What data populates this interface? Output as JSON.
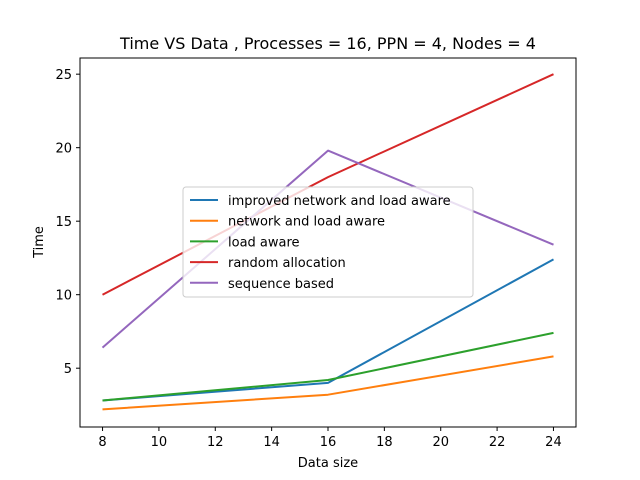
{
  "chart_data": {
    "type": "line",
    "title": "Time VS Data , Processes = 16, PPN = 4, Nodes = 4",
    "xlabel": "Data size",
    "ylabel": "Time",
    "xlim": [
      7.2,
      24.8
    ],
    "ylim": [
      1.0,
      26.1
    ],
    "xticks": [
      8,
      10,
      12,
      14,
      16,
      18,
      20,
      22,
      24
    ],
    "yticks": [
      5,
      10,
      15,
      20,
      25
    ],
    "grid": false,
    "legend_position": "center",
    "x": [
      8,
      16,
      24
    ],
    "series": [
      {
        "name": "improved network and load aware",
        "color": "#1f77b4",
        "values": [
          2.8,
          4.0,
          12.4
        ]
      },
      {
        "name": "network and load aware",
        "color": "#ff7f0e",
        "values": [
          2.2,
          3.2,
          5.8
        ]
      },
      {
        "name": "load aware",
        "color": "#2ca02c",
        "values": [
          2.8,
          4.2,
          7.4
        ]
      },
      {
        "name": "random allocation",
        "color": "#d62728",
        "values": [
          10.0,
          18.0,
          25.0
        ]
      },
      {
        "name": "sequence based",
        "color": "#9467bd",
        "values": [
          6.4,
          19.8,
          13.4
        ]
      }
    ]
  }
}
